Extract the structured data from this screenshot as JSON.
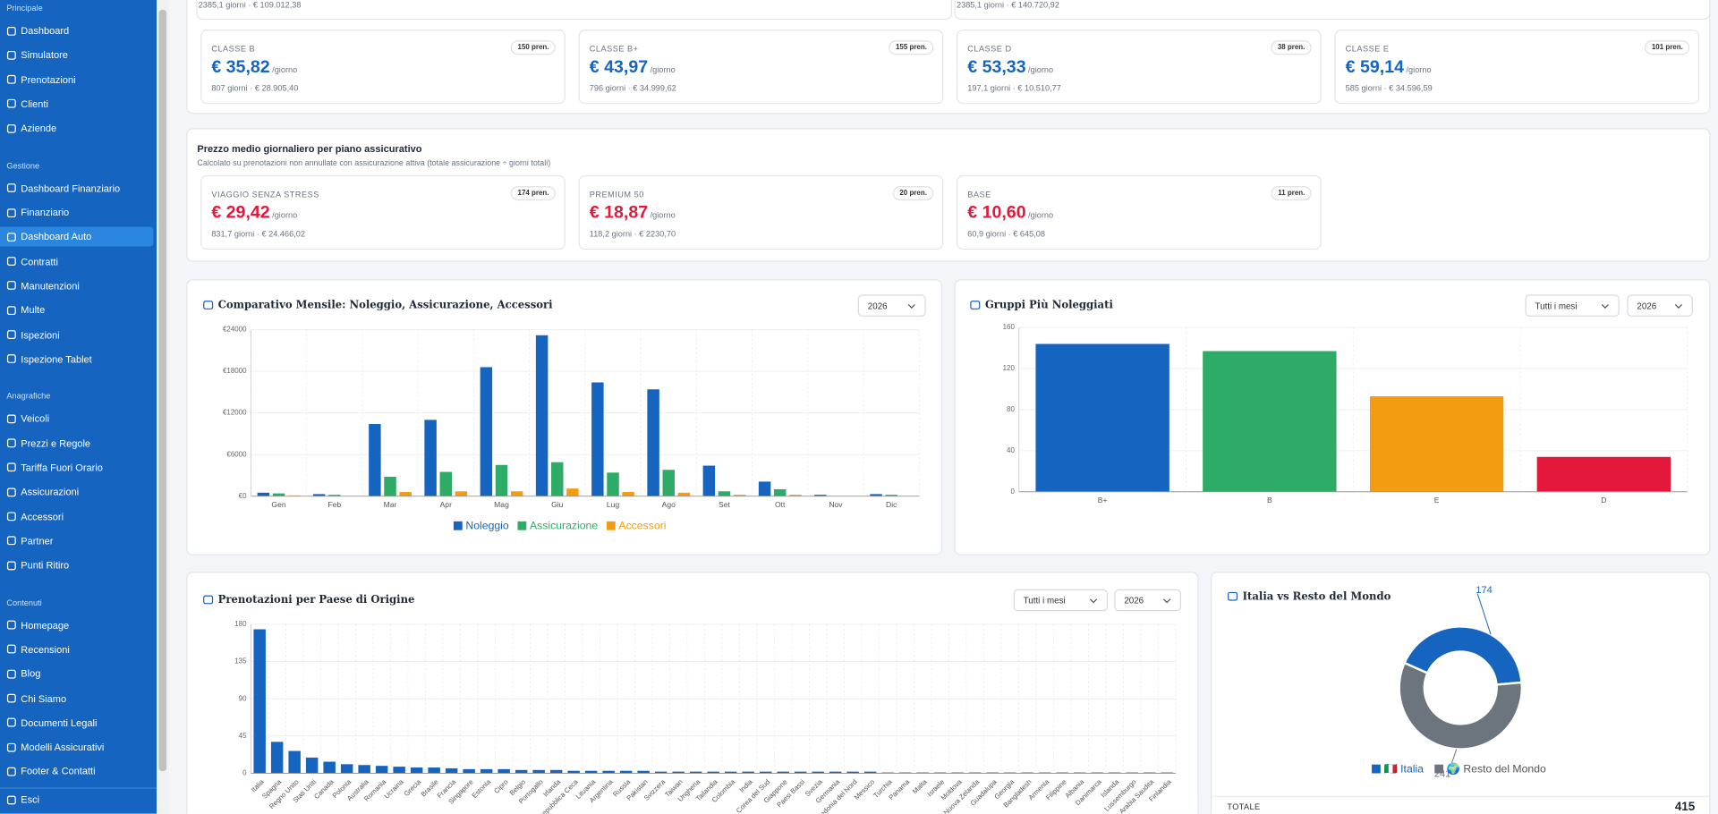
{
  "sidebar": {
    "sections": [
      {
        "title": "Principale",
        "items": [
          "Dashboard",
          "Simulatore",
          "Prenotazioni",
          "Clienti",
          "Aziende"
        ]
      },
      {
        "title": "Gestione",
        "items": [
          "Dashboard Finanziario",
          "Finanziario",
          "Dashboard Auto",
          "Contratti",
          "Manutenzioni",
          "Multe",
          "Ispezioni",
          "Ispezione Tablet"
        ]
      },
      {
        "title": "Anagrafiche",
        "items": [
          "Veicoli",
          "Prezzi e Regole",
          "Tariffa Fuori Orario",
          "Assicurazioni",
          "Accessori",
          "Partner",
          "Punti Ritiro"
        ]
      },
      {
        "title": "Contenuti",
        "items": [
          "Homepage",
          "Recensioni",
          "Blog",
          "Chi Siamo",
          "Documenti Legali",
          "Modelli Assicurativi",
          "Footer & Contatti"
        ]
      }
    ],
    "active_item": "Dashboard Auto",
    "logout": "Esci"
  },
  "top_partial": [
    "2385,1 giorni · € 109.012,38",
    "2385,1 giorni · € 140.720,92"
  ],
  "class_cards": [
    {
      "label": "CLASSE B",
      "badge": "150 pren.",
      "price": "€ 35,82",
      "unit": "/giorno",
      "footer": "807 giorni · € 28.905,40"
    },
    {
      "label": "CLASSE B+",
      "badge": "155 pren.",
      "price": "€ 43,97",
      "unit": "/giorno",
      "footer": "796 giorni · € 34.999,62"
    },
    {
      "label": "CLASSE D",
      "badge": "38 pren.",
      "price": "€ 53,33",
      "unit": "/giorno",
      "footer": "197,1 giorni · € 10.510,77"
    },
    {
      "label": "CLASSE E",
      "badge": "101 pren.",
      "price": "€ 59,14",
      "unit": "/giorno",
      "footer": "585 giorni · € 34.596,59"
    }
  ],
  "insurance": {
    "title": "Prezzo medio giornaliero per piano assicurativo",
    "subtitle": "Calcolato su prenotazioni non annullate con assicurazione attiva (totale assicurazione ÷ giorni totali)",
    "cards": [
      {
        "label": "VIAGGIO SENZA STRESS",
        "badge": "174 pren.",
        "price": "€ 29,42",
        "unit": "/giorno",
        "footer": "831,7 giorni · € 24.466,02"
      },
      {
        "label": "PREMIUM 50",
        "badge": "20 pren.",
        "price": "€ 18,87",
        "unit": "/giorno",
        "footer": "118,2 giorni · € 2230,70"
      },
      {
        "label": "BASE",
        "badge": "11 pren.",
        "price": "€ 10,60",
        "unit": "/giorno",
        "footer": "60,9 giorni · € 645,08"
      }
    ]
  },
  "monthly_chart": {
    "type": "bar",
    "title": "Comparativo Mensile: Noleggio, Assicurazione, Accessori",
    "selects": [
      "2026"
    ],
    "categories": [
      "Gen",
      "Feb",
      "Mar",
      "Apr",
      "Mag",
      "Giu",
      "Lug",
      "Ago",
      "Set",
      "Ott",
      "Nov",
      "Dic"
    ],
    "series": [
      {
        "name": "Noleggio",
        "color": "#1565c0",
        "values": [
          500,
          300,
          10400,
          11000,
          18600,
          23200,
          16400,
          15400,
          4400,
          2100,
          200,
          300
        ]
      },
      {
        "name": "Assicurazione",
        "color": "#2eab67",
        "values": [
          400,
          200,
          2800,
          3500,
          4500,
          4900,
          3400,
          3800,
          700,
          1000,
          0,
          200
        ]
      },
      {
        "name": "Accessori",
        "color": "#f39c12",
        "values": [
          100,
          0,
          600,
          700,
          700,
          1100,
          600,
          500,
          200,
          200,
          0,
          0
        ]
      }
    ],
    "ylim": [
      0,
      24000
    ],
    "yticks": [
      {
        "value": 0,
        "label": "€0"
      },
      {
        "value": 6000,
        "label": "€6000"
      },
      {
        "value": 12000,
        "label": "€12000"
      },
      {
        "value": 18000,
        "label": "€18000"
      },
      {
        "value": 24000,
        "label": "€24000"
      }
    ],
    "grid": true
  },
  "groups_chart": {
    "type": "bar",
    "title": "Gruppi Più Noleggiati",
    "selects": [
      "Tutti i mesi",
      "2026"
    ],
    "categories": [
      "B+",
      "B",
      "E",
      "D"
    ],
    "values": [
      144,
      137,
      93,
      34
    ],
    "colors": [
      "#1565c0",
      "#2eab67",
      "#f39c12",
      "#e3183b"
    ],
    "ylim": [
      0,
      160
    ],
    "yticks": [
      0,
      40,
      80,
      120,
      160
    ],
    "grid": true
  },
  "country_chart": {
    "type": "bar",
    "title": "Prenotazioni per Paese di Origine",
    "selects": [
      "Tutti i mesi",
      "2026"
    ],
    "categories": [
      "Italia",
      "Spagna",
      "Regno Unito",
      "Stati Uniti",
      "Canada",
      "Polonia",
      "Australia",
      "Romania",
      "Ucraina",
      "Grecia",
      "Brasile",
      "Francia",
      "Singapore",
      "Estonia",
      "Cipro",
      "Belgio",
      "Portogallo",
      "Irlanda",
      "Repubblica Ceca",
      "Lituania",
      "Argentina",
      "Russia",
      "Pakistan",
      "Svizzera",
      "Taiwan",
      "Ungheria",
      "Tailandia",
      "Colombia",
      "India",
      "Corea del Sud",
      "Giappone",
      "Paesi Bassi",
      "Svezia",
      "Germania",
      "Macedonia del Nord",
      "Messico",
      "Turchia",
      "Panama",
      "Malta",
      "Israele",
      "Moldova",
      "Nuova Zelanda",
      "Guadalupa",
      "Georgia",
      "Bangladesh",
      "Armenia",
      "Filippine",
      "Albania",
      "Danimarca",
      "Islanda",
      "Lussemburgo",
      "Arabia Saudita",
      "Finlandia"
    ],
    "values": [
      174,
      38,
      27,
      19,
      14,
      11,
      10,
      9,
      8,
      7,
      7,
      6,
      5,
      5,
      5,
      4,
      4,
      4,
      3,
      3,
      3,
      3,
      3,
      2,
      2,
      2,
      2,
      2,
      2,
      2,
      2,
      2,
      2,
      2,
      2,
      2,
      1,
      1,
      1,
      1,
      1,
      1,
      1,
      1,
      1,
      1,
      1,
      1,
      1,
      1,
      1,
      1,
      1
    ],
    "color": "#1565c0",
    "ylim": [
      0,
      180
    ],
    "yticks": [
      0,
      45,
      90,
      135,
      180
    ],
    "grid": true
  },
  "donut_chart": {
    "type": "doughnut",
    "title": "Italia vs Resto del Mondo",
    "categories": [
      "🇮🇹 Italia",
      "🌍 Resto del Mondo"
    ],
    "values": [
      174,
      241
    ],
    "colors": [
      "#1565c0",
      "#6c757d"
    ],
    "total_label": "TOTALE",
    "total": 415
  }
}
